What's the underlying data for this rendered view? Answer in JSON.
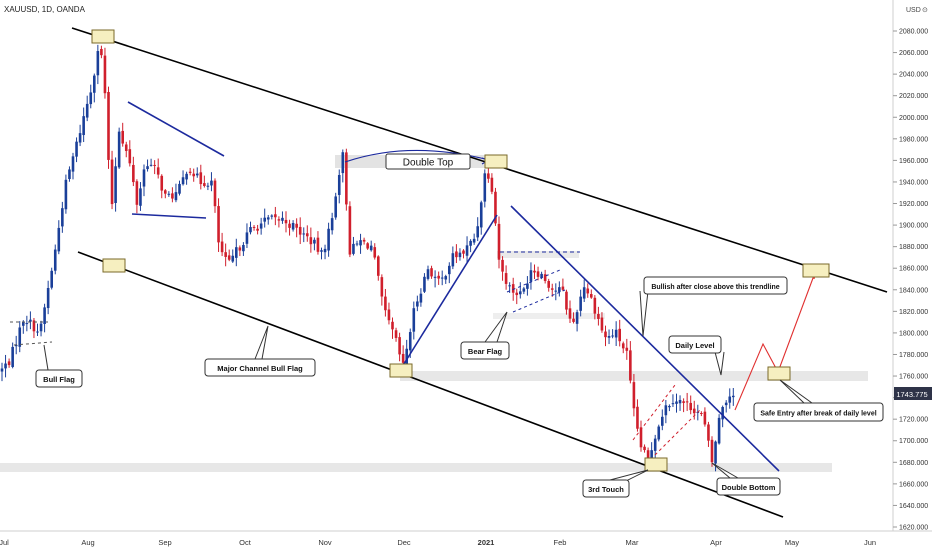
{
  "header": {
    "symbol": "XAUUSD, 1D, OANDA",
    "currency": "USD",
    "currency_icon": "dollar-icon"
  },
  "price_axis": {
    "ticks": [
      "2080.000",
      "2060.000",
      "2040.000",
      "2020.000",
      "2000.000",
      "1980.000",
      "1960.000",
      "1940.000",
      "1920.000",
      "1900.000",
      "1880.000",
      "1860.000",
      "1840.000",
      "1820.000",
      "1800.000",
      "1780.000",
      "1760.000",
      "1740.000",
      "1720.000",
      "1700.000",
      "1680.000",
      "1660.000",
      "1640.000",
      "1620.000"
    ],
    "current_price": "1743.775"
  },
  "time_axis": {
    "labels": [
      "Jul",
      "Aug",
      "Sep",
      "Oct",
      "Nov",
      "Dec",
      "2021",
      "Feb",
      "Mar",
      "Apr",
      "May",
      "Jun"
    ]
  },
  "annotations": {
    "double_top": "Double Top",
    "bull_flag": "Bull Flag",
    "major_channel": "Major Channel Bull Flag",
    "bear_flag": "Bear Flag",
    "bullish_trendline": "Bullish after close above this trendline",
    "daily_level": "Daily Level",
    "safe_entry": "Safe Entry after break of daily level",
    "third_touch": "3rd Touch",
    "double_bottom": "Double Bottom"
  },
  "colors": {
    "up": "#1a3f99",
    "down": "#d01f2c",
    "channel": "#000000",
    "trendline": "#1c2a9e",
    "projection": "#e03030",
    "zone": "#e3e3e3",
    "marker": "#f6efc0"
  },
  "chart_data": {
    "type": "candlestick",
    "symbol": "XAUUSD",
    "interval": "1D",
    "ylim": [
      1610,
      2105
    ],
    "x_labels": [
      "Jul",
      "Aug",
      "Sep",
      "Oct",
      "Nov",
      "Dec",
      "2021",
      "Feb",
      "Mar",
      "Apr",
      "May",
      "Jun"
    ],
    "series": [
      {
        "date": "Jul 2020",
        "value": 1765
      },
      {
        "date": "Jul 20 2020",
        "value": 1815
      },
      {
        "date": "Jul 2020",
        "value": 1955
      },
      {
        "date": "Aug 6 2020",
        "value": 2070
      },
      {
        "date": "Aug 11 2020",
        "value": 1910
      },
      {
        "date": "Sep 2020",
        "value": 1965
      },
      {
        "date": "Sep 2020",
        "value": 1920
      },
      {
        "date": "Sep 28 2020",
        "value": 1855
      },
      {
        "date": "Nov 6 2020",
        "value": 1965
      },
      {
        "date": "Nov 9 2020",
        "value": 1855
      },
      {
        "date": "Nov 30 2020",
        "value": 1765
      },
      {
        "date": "Jan 6 2021",
        "value": 1960
      },
      {
        "date": "Jan 2021",
        "value": 1845
      },
      {
        "date": "Jan 2021",
        "value": 1875
      },
      {
        "date": "Feb 2021",
        "value": 1805
      },
      {
        "date": "Feb 2021",
        "value": 1810
      },
      {
        "date": "Mar 8 2021",
        "value": 1680
      },
      {
        "date": "Mar 2021",
        "value": 1740
      },
      {
        "date": "Mar 31 2021",
        "value": 1680
      },
      {
        "date": "Apr 2021",
        "value": 1743.775
      }
    ],
    "current_price": 1743.775,
    "annotations": [
      "Double Top",
      "Bull Flag",
      "Major Channel Bull Flag",
      "Bear Flag",
      "Bullish after close above this trendline",
      "Daily Level",
      "Safe Entry after break of daily level",
      "3rd Touch",
      "Double Bottom"
    ]
  }
}
